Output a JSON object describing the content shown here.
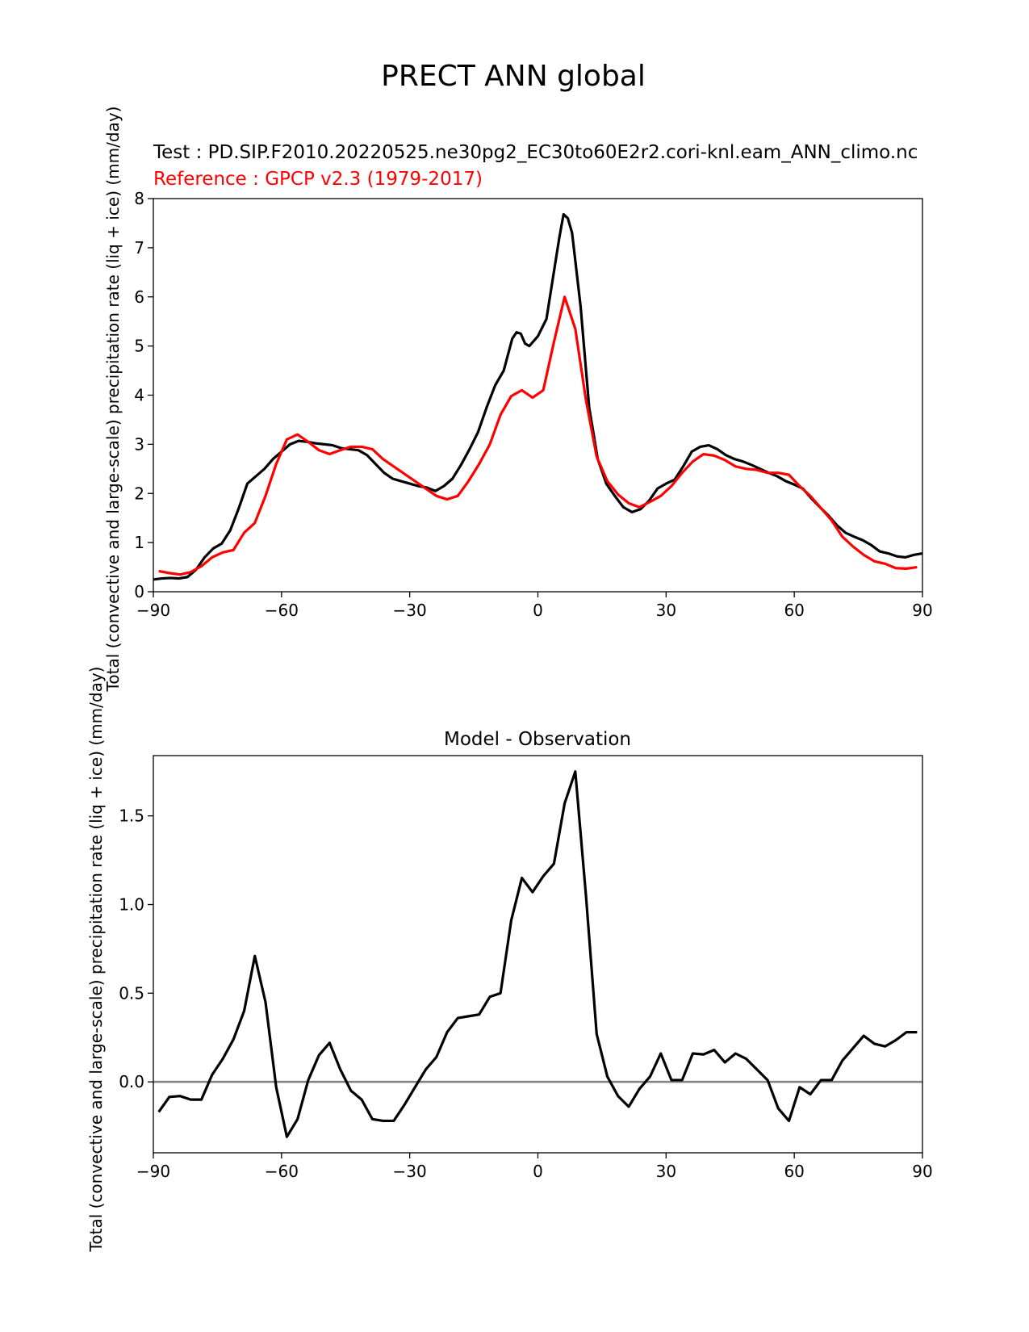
{
  "figure": {
    "suptitle": "PRECT ANN global"
  },
  "chart_data": [
    {
      "type": "line",
      "test_label": "Test : PD.SIP.F2010.20220525.ne30pg2_EC30to60E2r2.cori-knl.eam_ANN_climo.nc",
      "reference_label": "Reference : GPCP v2.3 (1979-2017)",
      "ylabel": "Total (convective and large-scale) precipitation rate (liq + ice) (mm/day)",
      "xlim": [
        -90,
        90
      ],
      "ylim": [
        0,
        8
      ],
      "xticks": [
        -90,
        -60,
        -30,
        0,
        30,
        60,
        90
      ],
      "xtick_labels": [
        "−90",
        "−60",
        "−30",
        "0",
        "30",
        "60",
        "90"
      ],
      "yticks": [
        0,
        1,
        2,
        3,
        4,
        5,
        6,
        7,
        8
      ],
      "ytick_labels": [
        "0",
        "1",
        "2",
        "3",
        "4",
        "5",
        "6",
        "7",
        "8"
      ],
      "colors": {
        "test": "#000000",
        "reference": "#ff0000"
      },
      "series": [
        {
          "role": "test",
          "x": [
            -90,
            -88,
            -86,
            -84,
            -82,
            -80,
            -78,
            -76,
            -74,
            -72,
            -70,
            -68,
            -66,
            -64,
            -62,
            -60,
            -58,
            -56,
            -54,
            -52,
            -50,
            -48,
            -46,
            -44,
            -42,
            -40,
            -38,
            -36,
            -34,
            -32,
            -30,
            -28,
            -26,
            -24,
            -22,
            -20,
            -18,
            -16,
            -14,
            -12,
            -10,
            -8,
            -6,
            -5,
            -4,
            -3,
            -2,
            0,
            2,
            4,
            5,
            6,
            7,
            8,
            10,
            12,
            14,
            16,
            18,
            20,
            22,
            24,
            26,
            28,
            30,
            32,
            34,
            36,
            38,
            40,
            42,
            44,
            46,
            48,
            50,
            52,
            54,
            56,
            58,
            60,
            62,
            64,
            66,
            68,
            70,
            72,
            74,
            76,
            78,
            80,
            82,
            84,
            86,
            88,
            90
          ],
          "y": [
            0.25,
            0.27,
            0.28,
            0.27,
            0.3,
            0.45,
            0.7,
            0.88,
            0.98,
            1.25,
            1.7,
            2.2,
            2.35,
            2.5,
            2.7,
            2.85,
            3.0,
            3.07,
            3.05,
            3.02,
            3.0,
            2.98,
            2.92,
            2.9,
            2.88,
            2.78,
            2.6,
            2.42,
            2.3,
            2.25,
            2.2,
            2.15,
            2.12,
            2.05,
            2.15,
            2.3,
            2.58,
            2.9,
            3.25,
            3.75,
            4.2,
            4.5,
            5.15,
            5.28,
            5.25,
            5.05,
            5.0,
            5.2,
            5.55,
            6.65,
            7.2,
            7.68,
            7.6,
            7.3,
            5.8,
            3.75,
            2.7,
            2.2,
            1.95,
            1.72,
            1.62,
            1.68,
            1.85,
            2.1,
            2.2,
            2.28,
            2.55,
            2.85,
            2.95,
            2.98,
            2.9,
            2.78,
            2.7,
            2.65,
            2.58,
            2.5,
            2.42,
            2.35,
            2.25,
            2.18,
            2.1,
            1.9,
            1.72,
            1.55,
            1.35,
            1.2,
            1.12,
            1.05,
            0.95,
            0.82,
            0.78,
            0.72,
            0.7,
            0.75,
            0.78
          ]
        },
        {
          "role": "reference",
          "x": [
            -88.75,
            -86.25,
            -83.75,
            -81.25,
            -78.75,
            -76.25,
            -73.75,
            -71.25,
            -68.75,
            -66.25,
            -63.75,
            -61.25,
            -58.75,
            -56.25,
            -53.75,
            -51.25,
            -48.75,
            -46.25,
            -43.75,
            -41.25,
            -38.75,
            -36.25,
            -33.75,
            -31.25,
            -28.75,
            -26.25,
            -23.75,
            -21.25,
            -18.75,
            -16.25,
            -13.75,
            -11.25,
            -8.75,
            -6.25,
            -3.75,
            -1.25,
            1.25,
            3.75,
            6.25,
            8.75,
            11.25,
            13.75,
            16.25,
            18.75,
            21.25,
            23.75,
            26.25,
            28.75,
            31.25,
            33.75,
            36.25,
            38.75,
            41.25,
            43.75,
            46.25,
            48.75,
            51.25,
            53.75,
            56.25,
            58.75,
            61.25,
            63.75,
            66.25,
            68.75,
            71.25,
            73.75,
            76.25,
            78.75,
            81.25,
            83.75,
            86.25,
            88.75
          ],
          "y": [
            0.42,
            0.38,
            0.35,
            0.4,
            0.52,
            0.7,
            0.8,
            0.85,
            1.2,
            1.4,
            1.95,
            2.6,
            3.1,
            3.2,
            3.05,
            2.88,
            2.8,
            2.88,
            2.95,
            2.95,
            2.9,
            2.7,
            2.55,
            2.4,
            2.25,
            2.1,
            1.95,
            1.88,
            1.95,
            2.25,
            2.6,
            3.0,
            3.6,
            3.98,
            4.1,
            3.95,
            4.1,
            5.08,
            6.0,
            5.35,
            3.9,
            2.75,
            2.25,
            1.98,
            1.8,
            1.72,
            1.83,
            1.95,
            2.15,
            2.42,
            2.65,
            2.8,
            2.77,
            2.68,
            2.55,
            2.5,
            2.48,
            2.42,
            2.42,
            2.38,
            2.15,
            1.95,
            1.7,
            1.45,
            1.12,
            0.92,
            0.75,
            0.62,
            0.57,
            0.48,
            0.47,
            0.5
          ]
        }
      ]
    },
    {
      "type": "line",
      "title": "Model - Observation",
      "ylabel": "Total (convective and large-scale) precipitation rate (liq + ice) (mm/day)",
      "xlim": [
        -90,
        90
      ],
      "ylim": [
        -0.4,
        1.84
      ],
      "xticks": [
        -90,
        -60,
        -30,
        0,
        30,
        60,
        90
      ],
      "xtick_labels": [
        "−90",
        "−60",
        "−30",
        "0",
        "30",
        "60",
        "90"
      ],
      "yticks": [
        0.0,
        0.5,
        1.0,
        1.5
      ],
      "ytick_labels": [
        "0.0",
        "0.5",
        "1.0",
        "1.5"
      ],
      "zero_line": 0,
      "colors": {
        "diff": "#000000",
        "zero_line": "#808080"
      },
      "series": [
        {
          "role": "diff",
          "x": [
            -88.75,
            -86.25,
            -83.75,
            -81.25,
            -78.75,
            -76.25,
            -73.75,
            -71.25,
            -68.75,
            -66.25,
            -63.75,
            -61.25,
            -58.75,
            -56.25,
            -53.75,
            -51.25,
            -48.75,
            -46.25,
            -43.75,
            -41.25,
            -38.75,
            -36.25,
            -33.75,
            -31.25,
            -28.75,
            -26.25,
            -23.75,
            -21.25,
            -18.75,
            -16.25,
            -13.75,
            -11.25,
            -8.75,
            -6.25,
            -3.75,
            -1.25,
            1.25,
            3.75,
            6.25,
            8.75,
            11.25,
            13.75,
            16.25,
            18.75,
            21.25,
            23.75,
            26.25,
            28.75,
            31.25,
            33.75,
            36.25,
            38.75,
            41.25,
            43.75,
            46.25,
            48.75,
            51.25,
            53.75,
            56.25,
            58.75,
            61.25,
            63.75,
            66.25,
            68.75,
            71.25,
            73.75,
            76.25,
            78.75,
            81.25,
            83.75,
            86.25,
            88.75
          ],
          "y": [
            -0.17,
            -0.085,
            -0.08,
            -0.1,
            -0.1,
            0.04,
            0.13,
            0.24,
            0.4,
            0.71,
            0.45,
            -0.03,
            -0.31,
            -0.21,
            0.01,
            0.15,
            0.22,
            0.07,
            -0.05,
            -0.1,
            -0.21,
            -0.22,
            -0.22,
            -0.13,
            -0.03,
            0.07,
            0.14,
            0.28,
            0.36,
            0.37,
            0.38,
            0.48,
            0.5,
            0.91,
            1.15,
            1.07,
            1.16,
            1.23,
            1.57,
            1.75,
            1.05,
            0.27,
            0.03,
            -0.08,
            -0.14,
            -0.04,
            0.03,
            0.16,
            0.01,
            0.01,
            0.16,
            0.155,
            0.18,
            0.11,
            0.16,
            0.13,
            0.07,
            0.01,
            -0.15,
            -0.22,
            -0.03,
            -0.07,
            0.01,
            0.01,
            0.12,
            0.19,
            0.26,
            0.215,
            0.2,
            0.235,
            0.28,
            0.28
          ]
        }
      ]
    }
  ]
}
